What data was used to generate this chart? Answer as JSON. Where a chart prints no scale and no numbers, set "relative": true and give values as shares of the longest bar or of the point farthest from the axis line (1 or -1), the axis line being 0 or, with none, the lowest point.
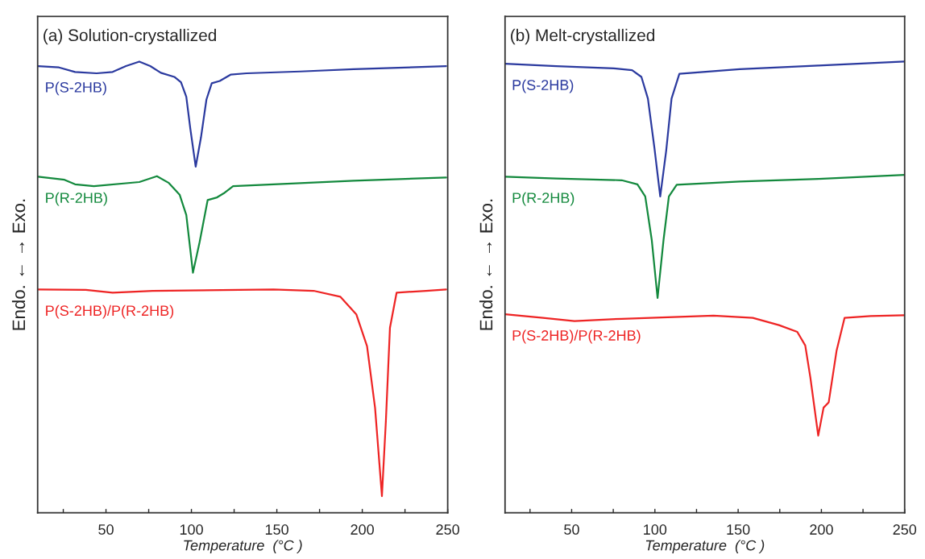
{
  "chart_data": [
    {
      "type": "line",
      "title": "(a) Solution-crystallized",
      "xlabel": "Temperature  (°C )",
      "ylabel": "Endo. ← → Exo.",
      "relative": true,
      "xlim": [
        10,
        250
      ],
      "xticks": [
        {
          "value": 25,
          "label": null
        },
        50,
        {
          "value": 75,
          "label": null
        },
        100,
        {
          "value": 125,
          "label": null
        },
        150,
        {
          "value": 175,
          "label": null
        },
        200,
        {
          "value": 225,
          "label": null
        },
        250
      ],
      "grid": false,
      "legend": false,
      "tick_labels": "x",
      "line_style": "solid",
      "marker": "none",
      "series": [
        {
          "name": "P(S-2HB)",
          "color": "#2b3a9f",
          "x": [
            10.3,
            22.5,
            31.9,
            44.5,
            53.9,
            61.7,
            69.5,
            75.9,
            82.1,
            90.0,
            93.9,
            97.0,
            99.4,
            102.5,
            105.6,
            108.8,
            111.9,
            116.6,
            122.9,
            132.3,
            163.6,
            195.0,
            249.1
          ],
          "values": [
            0.99,
            0.987,
            0.977,
            0.974,
            0.977,
            0.99,
            1.0,
            0.99,
            0.975,
            0.966,
            0.954,
            0.922,
            0.85,
            0.767,
            0.832,
            0.916,
            0.952,
            0.957,
            0.971,
            0.974,
            0.978,
            0.983,
            0.99
          ]
        },
        {
          "name": "P(R-2HB)",
          "color": "#13893d",
          "x": [
            10.3,
            25.7,
            31.9,
            42.9,
            69.5,
            79.8,
            86.8,
            93.1,
            97.0,
            100.9,
            104.8,
            109.5,
            115.0,
            118.9,
            124.4,
            148.0,
            195.0,
            249.1
          ],
          "values": [
            0.745,
            0.738,
            0.728,
            0.724,
            0.733,
            0.746,
            0.731,
            0.705,
            0.66,
            0.532,
            0.6,
            0.693,
            0.699,
            0.708,
            0.724,
            0.728,
            0.736,
            0.743
          ]
        },
        {
          "name": "P(S-2HB)/P(R-2HB)",
          "color": "#ee2424",
          "x": [
            10.3,
            38.2,
            53.9,
            77.4,
            148.0,
            171.5,
            187.1,
            196.5,
            202.8,
            207.5,
            211.5,
            213.8,
            216.2,
            220.1,
            237.3,
            249.1
          ],
          "values": [
            0.495,
            0.494,
            0.488,
            0.492,
            0.495,
            0.492,
            0.479,
            0.44,
            0.369,
            0.232,
            0.037,
            0.202,
            0.41,
            0.488,
            0.492,
            0.495
          ]
        }
      ]
    },
    {
      "type": "line",
      "title": "(b) Melt-crystallized",
      "xlabel": "Temperature  (°C )",
      "ylabel": "Endo. ← → Exo.",
      "relative": true,
      "xlim": [
        10,
        250
      ],
      "xticks": [
        {
          "value": 25,
          "label": null
        },
        50,
        {
          "value": 75,
          "label": null
        },
        100,
        {
          "value": 125,
          "label": null
        },
        150,
        {
          "value": 175,
          "label": null
        },
        200,
        {
          "value": 225,
          "label": null
        },
        250
      ],
      "grid": false,
      "legend": false,
      "tick_labels": "x",
      "line_style": "solid",
      "marker": "none",
      "series": [
        {
          "name": "P(S-2HB)",
          "color": "#2b3a9f",
          "x": [
            10,
            40.7,
            75.3,
            86.3,
            91.9,
            95.8,
            99.7,
            103.2,
            106.8,
            110.0,
            114.7,
            150.9,
            198.1,
            249.8
          ],
          "values": [
            0.995,
            0.99,
            0.985,
            0.981,
            0.966,
            0.918,
            0.809,
            0.701,
            0.803,
            0.918,
            0.973,
            0.983,
            0.991,
            1.0
          ]
        },
        {
          "name": "P(R-2HB)",
          "color": "#13893d",
          "x": [
            10,
            40.7,
            80.1,
            89.5,
            94.2,
            98.1,
            101.6,
            105.2,
            108.4,
            113.1,
            150.9,
            198.1,
            249.8
          ],
          "values": [
            0.745,
            0.741,
            0.737,
            0.728,
            0.701,
            0.605,
            0.476,
            0.605,
            0.701,
            0.727,
            0.734,
            0.74,
            0.749
          ]
        },
        {
          "name": "P(S-2HB)/P(R-2HB)",
          "color": "#ee2424",
          "x": [
            10,
            32.8,
            51.7,
            80.1,
            135.2,
            158.8,
            174.5,
            185.5,
            190.3,
            193.4,
            198.1,
            201.3,
            204.4,
            209.1,
            213.9,
            229.6,
            249.8
          ],
          "values": [
            0.44,
            0.432,
            0.425,
            0.43,
            0.437,
            0.432,
            0.416,
            0.401,
            0.371,
            0.299,
            0.171,
            0.233,
            0.245,
            0.359,
            0.432,
            0.436,
            0.438
          ]
        }
      ]
    }
  ]
}
